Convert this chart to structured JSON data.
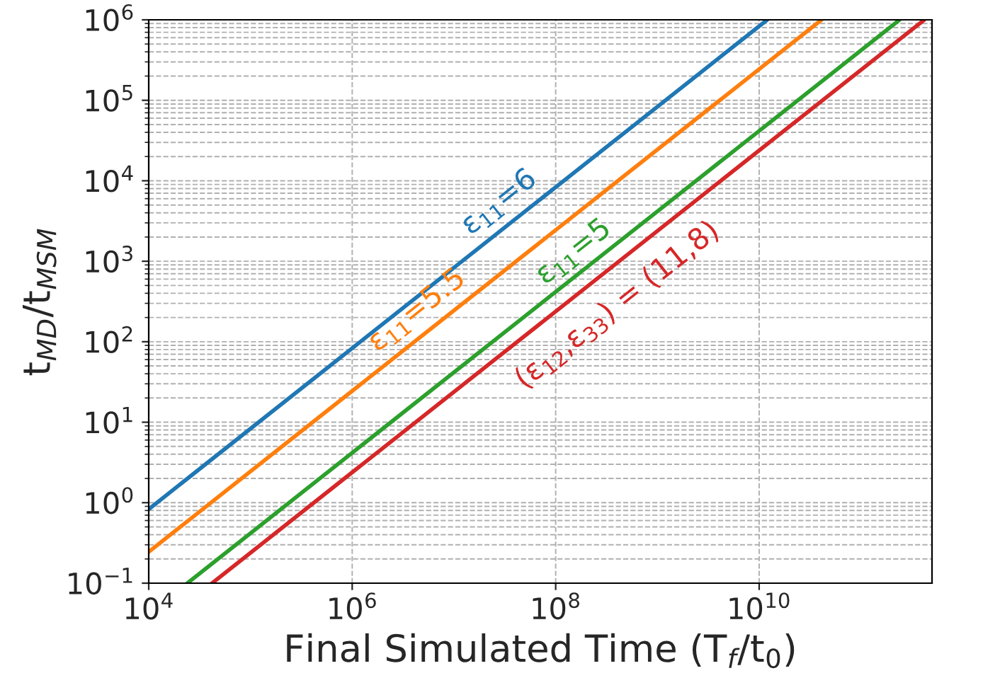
{
  "chart_data": {
    "type": "line",
    "xlabel": "Final Simulated Time (T$_{f}$/t$_{0}$)",
    "ylabel": "t$_{MD}$/t$_{MSM}$",
    "log": "xy",
    "grid": true,
    "line_style": "solid",
    "marker": "none",
    "xlim": [
      10000,
      500000000000
    ],
    "ylim": [
      0.1,
      1000000
    ],
    "xticks": [
      {
        "value": 10000,
        "label": "10$^{4}$"
      },
      {
        "value": 1000000,
        "label": "10$^{6}$"
      },
      {
        "value": 100000000,
        "label": "10$^{8}$"
      },
      {
        "value": 10000000000,
        "label": "10$^{10}$"
      }
    ],
    "yticks": [
      {
        "value": 0.1,
        "label": "10$^{−1}$"
      },
      {
        "value": 1,
        "label": "10$^{0}$"
      },
      {
        "value": 10,
        "label": "10$^{1}$"
      },
      {
        "value": 100,
        "label": "10$^{2}$"
      },
      {
        "value": 1000,
        "label": "10$^{3}$"
      },
      {
        "value": 10000,
        "label": "10$^{4}$"
      },
      {
        "value": 100000,
        "label": "10$^{5}$"
      },
      {
        "value": 1000000,
        "label": "10$^{6}$"
      }
    ],
    "series": [
      {
        "name": "ε$_{11}$=6",
        "color": "#1f77b4",
        "x": [
          10000,
          12000000000
        ],
        "values": [
          0.83,
          1000000
        ]
      },
      {
        "name": "ε$_{11}$=5.5",
        "color": "#ff7f0e",
        "x": [
          10000,
          41000000000
        ],
        "values": [
          0.245,
          1000000
        ]
      },
      {
        "name": "ε$_{11}$=5",
        "color": "#2ca02c",
        "x": [
          24000,
          240000000000
        ],
        "values": [
          0.1,
          1000000
        ]
      },
      {
        "name": "(ε$_{12}$,ε$_{33}$) = (11,8)",
        "color": "#d62728",
        "x": [
          42000,
          420000000000
        ],
        "values": [
          0.1,
          1000000
        ]
      }
    ]
  }
}
